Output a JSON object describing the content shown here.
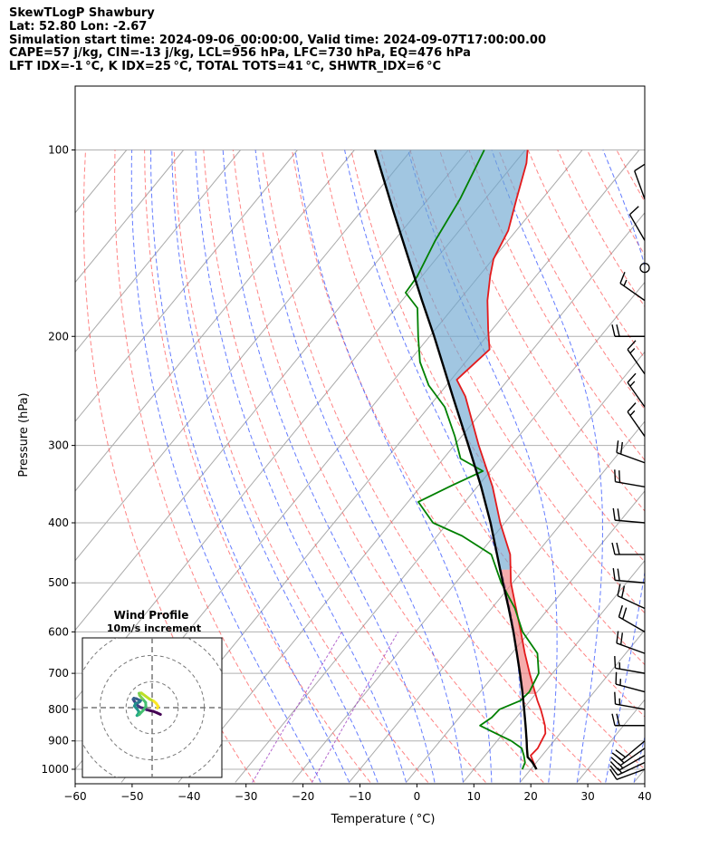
{
  "header": {
    "lines": [
      "SkewTLogP Shawbury",
      "Lat: 52.80   Lon: -2.67",
      "Simulation start time: 2024-09-06_00:00:00, Valid time: 2024-09-07T17:00:00.00",
      "CAPE=57 j/kg, CIN=-13 j/kg, LCL=956 hPa, LFC=730 hPa, EQ=476 hPa",
      "LFT IDX=-1 °C, K IDX=25 °C, TOTAL TOTS=41 °C, SHWTR_IDX=6 °C"
    ]
  },
  "chart_data": {
    "type": "skewt",
    "xlabel": "Temperature ( °C)",
    "ylabel": "Pressure (hPa)",
    "xlim": [
      -60,
      40
    ],
    "ylim": [
      1050,
      100
    ],
    "xticks": [
      -60,
      -50,
      -40,
      -30,
      -20,
      -10,
      0,
      10,
      20,
      30,
      40
    ],
    "yticks": [
      100,
      200,
      300,
      400,
      500,
      600,
      700,
      800,
      900,
      1000
    ],
    "y_scale": "log",
    "grid": true,
    "colors": {
      "temperature": "#e31a1c",
      "dewpoint": "#008000",
      "parcel": "#000000",
      "cape_fill": "#6fa8d1",
      "cin_fill": "#f08080",
      "dry_adiabats": "#ff5050",
      "moist_adiabats": "#3050ff",
      "mixing_ratio": "#a040c0",
      "isotherms": "#aaaaaa"
    },
    "temperature": [
      {
        "p": 1000,
        "t": 21.0
      },
      {
        "p": 975,
        "t": 19.5
      },
      {
        "p": 950,
        "t": 18.0
      },
      {
        "p": 925,
        "t": 18.2
      },
      {
        "p": 900,
        "t": 17.8
      },
      {
        "p": 875,
        "t": 17.4
      },
      {
        "p": 850,
        "t": 16.2
      },
      {
        "p": 825,
        "t": 14.7
      },
      {
        "p": 800,
        "t": 13.1
      },
      {
        "p": 775,
        "t": 11.3
      },
      {
        "p": 750,
        "t": 9.6
      },
      {
        "p": 700,
        "t": 6.0
      },
      {
        "p": 650,
        "t": 2.3
      },
      {
        "p": 600,
        "t": -1.5
      },
      {
        "p": 550,
        "t": -5.7
      },
      {
        "p": 500,
        "t": -10.3
      },
      {
        "p": 450,
        "t": -14.5
      },
      {
        "p": 400,
        "t": -20.8
      },
      {
        "p": 350,
        "t": -27.3
      },
      {
        "p": 300,
        "t": -35.7
      },
      {
        "p": 250,
        "t": -45.1
      },
      {
        "p": 235,
        "t": -49.0
      },
      {
        "p": 210,
        "t": -47.6
      },
      {
        "p": 195,
        "t": -50.7
      },
      {
        "p": 175,
        "t": -55.0
      },
      {
        "p": 160,
        "t": -58.0
      },
      {
        "p": 150,
        "t": -59.9
      },
      {
        "p": 135,
        "t": -61.4
      },
      {
        "p": 120,
        "t": -64.5
      },
      {
        "p": 105,
        "t": -67.9
      },
      {
        "p": 100,
        "t": -69.6
      }
    ],
    "dewpoint": [
      {
        "p": 1000,
        "t": 18.5
      },
      {
        "p": 975,
        "t": 18.0
      },
      {
        "p": 950,
        "t": 16.8
      },
      {
        "p": 925,
        "t": 15.4
      },
      {
        "p": 900,
        "t": 12.5
      },
      {
        "p": 875,
        "t": 8.7
      },
      {
        "p": 850,
        "t": 4.8
      },
      {
        "p": 825,
        "t": 5.7
      },
      {
        "p": 800,
        "t": 5.9
      },
      {
        "p": 775,
        "t": 8.3
      },
      {
        "p": 750,
        "t": 8.6
      },
      {
        "p": 700,
        "t": 7.6
      },
      {
        "p": 650,
        "t": 4.5
      },
      {
        "p": 600,
        "t": -1.2
      },
      {
        "p": 550,
        "t": -5.9
      },
      {
        "p": 500,
        "t": -12.0
      },
      {
        "p": 450,
        "t": -17.8
      },
      {
        "p": 420,
        "t": -25.6
      },
      {
        "p": 400,
        "t": -32.6
      },
      {
        "p": 370,
        "t": -38.2
      },
      {
        "p": 350,
        "t": -35.0
      },
      {
        "p": 330,
        "t": -31.3
      },
      {
        "p": 315,
        "t": -37.0
      },
      {
        "p": 290,
        "t": -41.2
      },
      {
        "p": 260,
        "t": -47.2
      },
      {
        "p": 240,
        "t": -53.1
      },
      {
        "p": 220,
        "t": -58.0
      },
      {
        "p": 200,
        "t": -62.0
      },
      {
        "p": 180,
        "t": -66.2
      },
      {
        "p": 170,
        "t": -70.5
      },
      {
        "p": 160,
        "t": -70.8
      },
      {
        "p": 140,
        "t": -72.8
      },
      {
        "p": 120,
        "t": -74.4
      },
      {
        "p": 100,
        "t": -77.2
      }
    ],
    "parcel": [
      {
        "p": 1000,
        "t": 21.0
      },
      {
        "p": 975,
        "t": 19.3
      },
      {
        "p": 956,
        "t": 17.7
      },
      {
        "p": 925,
        "t": 16.3
      },
      {
        "p": 900,
        "t": 15.2
      },
      {
        "p": 850,
        "t": 12.8
      },
      {
        "p": 800,
        "t": 10.2
      },
      {
        "p": 750,
        "t": 7.4
      },
      {
        "p": 700,
        "t": 4.3
      },
      {
        "p": 650,
        "t": 0.9
      },
      {
        "p": 600,
        "t": -2.8
      },
      {
        "p": 550,
        "t": -7.0
      },
      {
        "p": 500,
        "t": -11.7
      },
      {
        "p": 476,
        "t": -14.1
      },
      {
        "p": 450,
        "t": -16.8
      },
      {
        "p": 400,
        "t": -22.5
      },
      {
        "p": 350,
        "t": -29.3
      },
      {
        "p": 300,
        "t": -37.5
      },
      {
        "p": 250,
        "t": -47.3
      },
      {
        "p": 200,
        "t": -59.2
      },
      {
        "p": 175,
        "t": -66.5
      },
      {
        "p": 150,
        "t": -74.8
      },
      {
        "p": 125,
        "t": -84.6
      },
      {
        "p": 100,
        "t": -96.4
      }
    ],
    "wind_barbs": [
      {
        "p": 1000,
        "dir": 250,
        "speed_kt": 10
      },
      {
        "p": 975,
        "dir": 245,
        "speed_kt": 15
      },
      {
        "p": 950,
        "dir": 240,
        "speed_kt": 15
      },
      {
        "p": 925,
        "dir": 235,
        "speed_kt": 20
      },
      {
        "p": 900,
        "dir": 230,
        "speed_kt": 20
      },
      {
        "p": 850,
        "dir": 270,
        "speed_kt": 20
      },
      {
        "p": 800,
        "dir": 280,
        "speed_kt": 15
      },
      {
        "p": 750,
        "dir": 285,
        "speed_kt": 15
      },
      {
        "p": 700,
        "dir": 280,
        "speed_kt": 15
      },
      {
        "p": 650,
        "dir": 290,
        "speed_kt": 20
      },
      {
        "p": 600,
        "dir": 300,
        "speed_kt": 20
      },
      {
        "p": 550,
        "dir": 295,
        "speed_kt": 20
      },
      {
        "p": 500,
        "dir": 275,
        "speed_kt": 20
      },
      {
        "p": 450,
        "dir": 270,
        "speed_kt": 20
      },
      {
        "p": 400,
        "dir": 275,
        "speed_kt": 20
      },
      {
        "p": 350,
        "dir": 280,
        "speed_kt": 20
      },
      {
        "p": 320,
        "dir": 290,
        "speed_kt": 20
      },
      {
        "p": 290,
        "dir": 325,
        "speed_kt": 15
      },
      {
        "p": 260,
        "dir": 325,
        "speed_kt": 15
      },
      {
        "p": 230,
        "dir": 325,
        "speed_kt": 15
      },
      {
        "p": 200,
        "dir": 270,
        "speed_kt": 20
      },
      {
        "p": 175,
        "dir": 305,
        "speed_kt": 15
      },
      {
        "p": 155,
        "dir": 0,
        "speed_kt": 0
      },
      {
        "p": 140,
        "dir": 330,
        "speed_kt": 10
      },
      {
        "p": 120,
        "dir": 340,
        "speed_kt": 10
      }
    ],
    "hodograph": {
      "title": "Wind Profile",
      "subtitle": "10m/s increment",
      "range_ms": 20,
      "rings_ms": [
        10,
        20
      ],
      "colormap": "viridis",
      "u": [
        3.2,
        1.9,
        0.4,
        -0.9,
        -2.1,
        -3.2,
        -4.3,
        -5.3,
        -6.1,
        -6.8,
        -7.3,
        -7.0,
        -6.0,
        -5.0,
        -4.4,
        -4.7,
        -5.2,
        -6.4,
        -6.8,
        -5.8,
        -5.1,
        -5.3,
        -5.8,
        -4.9,
        -3.4,
        -2.4,
        -2.5,
        -3.7,
        -4.8,
        -5.0,
        -4.1,
        -2.5,
        -1.0,
        0.6,
        1.6,
        2.3,
        2.0
      ],
      "v": [
        -2.6,
        -2.0,
        -1.4,
        -1.1,
        -0.8,
        -0.2,
        0.0,
        0.6,
        1.5,
        2.4,
        3.2,
        3.6,
        3.4,
        2.9,
        2.7,
        2.3,
        2.0,
        1.6,
        0.6,
        -0.5,
        -1.5,
        -2.3,
        -3.0,
        -2.6,
        -1.0,
        0.5,
        2.0,
        3.4,
        4.7,
        5.5,
        5.6,
        4.4,
        3.3,
        2.5,
        1.6,
        0.5,
        -0.2
      ]
    }
  }
}
